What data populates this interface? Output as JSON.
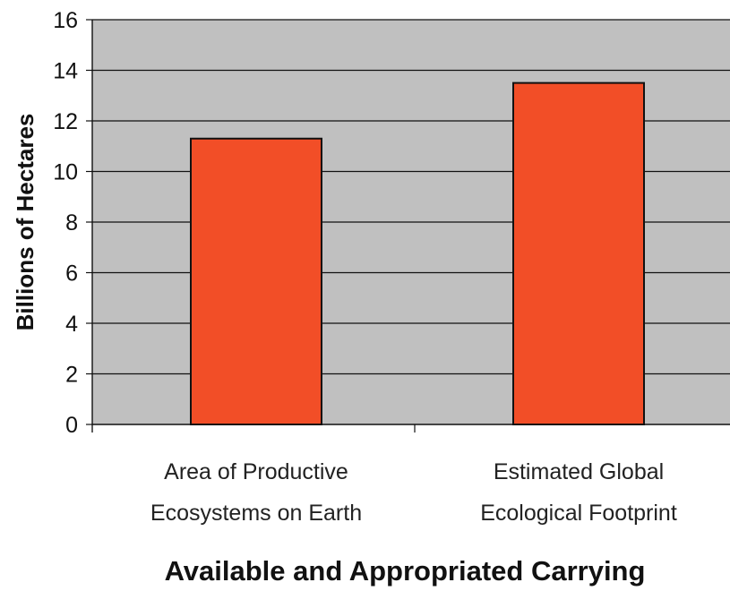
{
  "chart_data": {
    "type": "bar",
    "categories": [
      [
        "Area of Productive",
        "Ecosystems on Earth"
      ],
      [
        "Estimated Global",
        "Ecological Footprint"
      ]
    ],
    "values": [
      11.3,
      13.5
    ],
    "title": "",
    "xlabel": "Available and Appropriated Carrying",
    "ylabel": "Billions of Hectares",
    "ylim": [
      0,
      16
    ],
    "yticks": [
      0,
      2,
      4,
      6,
      8,
      10,
      12,
      14,
      16
    ],
    "grid": true,
    "legend": "none",
    "colors": {
      "bar_fill": "#F24E27",
      "bar_stroke": "#111111",
      "plot_background": "#C0C0C0",
      "grid": "#111111"
    }
  }
}
